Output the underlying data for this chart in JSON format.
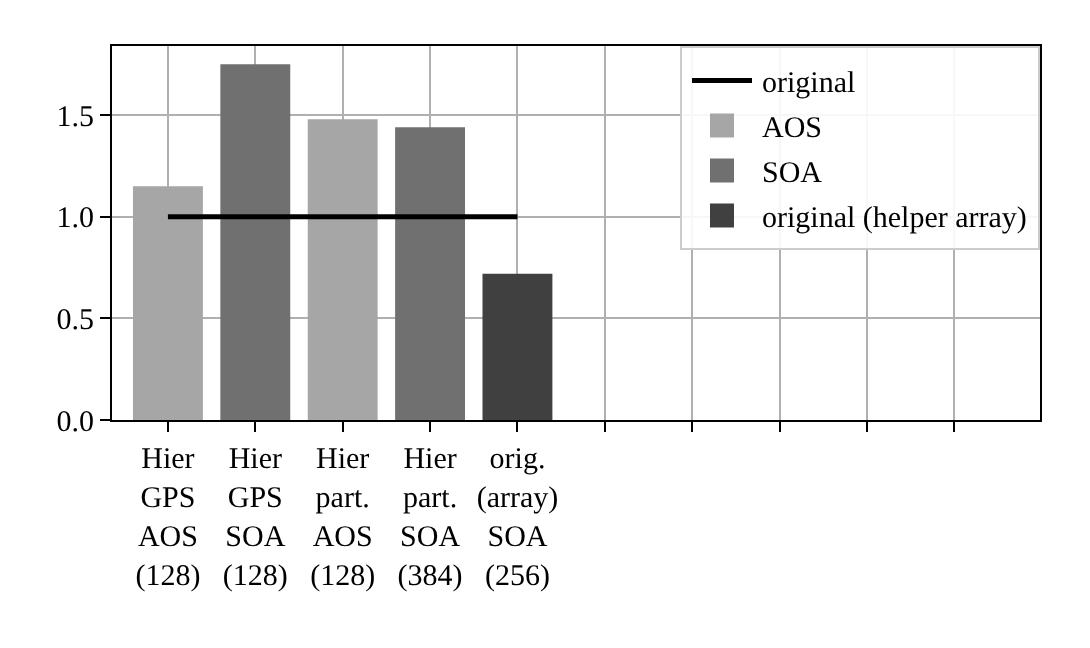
{
  "chart_data": {
    "type": "bar",
    "categories": [
      "Hier\nGPS\nAOS\n(128)",
      "Hier\nGPS\nSOA\n(128)",
      "Hier\npart.\nAOS\n(128)",
      "Hier\npart.\nSOA\n(384)",
      "orig.\n(array)\nSOA\n(256)",
      null,
      null,
      null,
      null,
      null
    ],
    "series": [
      {
        "name": "original",
        "type": "line",
        "color": "#000000",
        "values": [
          1,
          1,
          1,
          1,
          1,
          null,
          null,
          null,
          null,
          null
        ]
      },
      {
        "name": "AOS",
        "color": "#a6a6a6",
        "values": [
          1.15,
          null,
          1.48,
          null,
          null,
          null,
          null,
          null,
          null,
          null
        ]
      },
      {
        "name": "SOA",
        "color": "#707070",
        "values": [
          null,
          1.75,
          null,
          1.44,
          null,
          null,
          null,
          null,
          null,
          null
        ]
      },
      {
        "name": "original (helper array)",
        "color": "#404040",
        "values": [
          null,
          null,
          null,
          null,
          0.72,
          null,
          null,
          null,
          null,
          null
        ]
      }
    ],
    "ylim": [
      0,
      1.84
    ],
    "yticks": [
      {
        "value": 0,
        "label": "0.0"
      },
      0.5,
      {
        "value": 1,
        "label": "1.0"
      },
      1.5
    ],
    "grid": true,
    "legend": "top right"
  }
}
